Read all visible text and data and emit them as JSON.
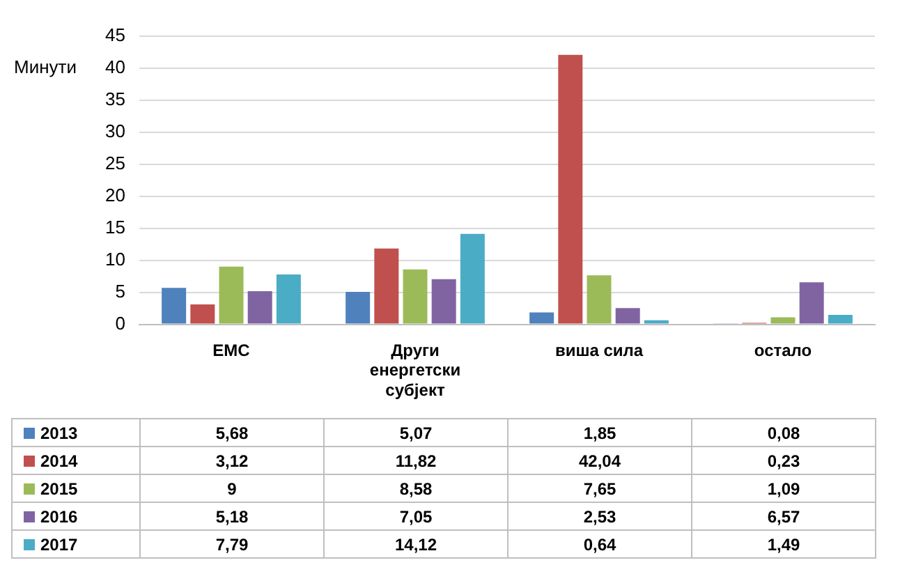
{
  "chart_data": {
    "type": "bar",
    "ylabel": "Минути",
    "categories": [
      "ЕМС",
      "Други енергетски субјект",
      "виша сила",
      "остало"
    ],
    "series": [
      {
        "name": "2013",
        "color": "#4f81bd",
        "values": [
          5.68,
          5.07,
          1.85,
          0.08
        ],
        "value_labels": [
          "5,68",
          "5,07",
          "1,85",
          "0,08"
        ]
      },
      {
        "name": "2014",
        "color": "#c0504d",
        "values": [
          3.12,
          11.82,
          42.04,
          0.23
        ],
        "value_labels": [
          "3,12",
          "11,82",
          "42,04",
          "0,23"
        ]
      },
      {
        "name": "2015",
        "color": "#9bbb59",
        "values": [
          9,
          8.58,
          7.65,
          1.09
        ],
        "value_labels": [
          "9",
          "8,58",
          "7,65",
          "1,09"
        ]
      },
      {
        "name": "2016",
        "color": "#8064a2",
        "values": [
          5.18,
          7.05,
          2.53,
          6.57
        ],
        "value_labels": [
          "5,18",
          "7,05",
          "2,53",
          "6,57"
        ]
      },
      {
        "name": "2017",
        "color": "#4bacc6",
        "values": [
          7.79,
          14.12,
          0.64,
          1.49
        ],
        "value_labels": [
          "7,79",
          "14,12",
          "0,64",
          "1,49"
        ]
      }
    ],
    "ylim": [
      0,
      45
    ],
    "yticks": [
      0,
      5,
      10,
      15,
      20,
      25,
      30,
      35,
      40,
      45
    ],
    "grid": "y",
    "legend": "bottom"
  }
}
